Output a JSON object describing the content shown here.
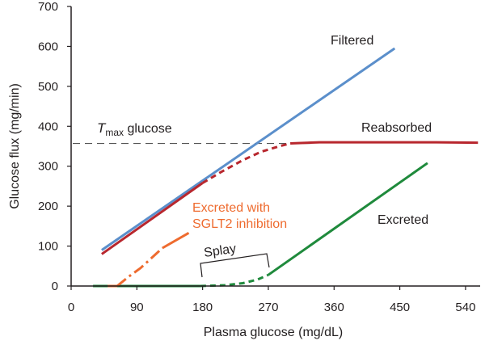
{
  "chart_data": {
    "type": "line",
    "xlabel": "Plasma glucose (mg/dL)",
    "ylabel": "Glucose flux (mg/min)",
    "xlim": [
      0,
      560
    ],
    "ylim": [
      0,
      700
    ],
    "xticks": [
      0,
      90,
      180,
      270,
      360,
      450,
      540
    ],
    "yticks": [
      0,
      100,
      200,
      300,
      400,
      500,
      600,
      700
    ],
    "grid": false,
    "legend": "none",
    "tmax": {
      "label_t": "T",
      "label_sub": "max",
      "label_rest": " glucose",
      "y": 357,
      "x_range": [
        0,
        330
      ]
    },
    "series": [
      {
        "name": "Filtered",
        "color": "#5b8fcb",
        "segments": [
          {
            "style": "solid",
            "points": [
              [
                42,
                90
              ],
              [
                443,
                595
              ]
            ]
          }
        ]
      },
      {
        "name": "Reabsorbed",
        "color": "#b8272e",
        "segments": [
          {
            "style": "solid",
            "points": [
              [
                42,
                80
              ],
              [
                180,
                258
              ]
            ]
          },
          {
            "style": "dashed",
            "points": [
              [
                180,
                258
              ],
              [
                205,
                285
              ],
              [
                235,
                315
              ],
              [
                260,
                336
              ],
              [
                285,
                350
              ],
              [
                300,
                357
              ]
            ]
          },
          {
            "style": "solid",
            "points": [
              [
                300,
                357
              ],
              [
                340,
                360
              ],
              [
                430,
                360
              ],
              [
                500,
                360
              ],
              [
                557,
                359
              ]
            ]
          }
        ]
      },
      {
        "name": "Excreted",
        "color": "#1f8a3c",
        "segments": [
          {
            "style": "solid",
            "points": [
              [
                30,
                0
              ],
              [
                177,
                0
              ]
            ]
          },
          {
            "style": "dashed",
            "points": [
              [
                177,
                0
              ],
              [
                210,
                2
              ],
              [
                235,
                7
              ],
              [
                255,
                16
              ],
              [
                270,
                28
              ]
            ]
          },
          {
            "style": "solid",
            "points": [
              [
                270,
                28
              ],
              [
                488,
                308
              ]
            ]
          }
        ]
      },
      {
        "name": "Excreted with SGLT2 inhibition",
        "color": "#ee6b2f",
        "segments": [
          {
            "style": "solid",
            "points": [
              [
                50,
                0
              ],
              [
                63,
                0
              ]
            ]
          },
          {
            "style": "dashdot",
            "points": [
              [
                63,
                0
              ],
              [
                80,
                25
              ],
              [
                95,
                45
              ],
              [
                110,
                70
              ],
              [
                125,
                95
              ]
            ]
          },
          {
            "style": "solid",
            "points": [
              [
                125,
                95
              ],
              [
                161,
                133
              ]
            ]
          }
        ]
      }
    ],
    "annotations": {
      "filtered": "Filtered",
      "reabsorbed": "Reabsorbed",
      "excreted": "Excreted",
      "sglt2_line1": "Excreted with",
      "sglt2_line2": "SGLT2 inhibition",
      "splay": "Splay"
    }
  }
}
